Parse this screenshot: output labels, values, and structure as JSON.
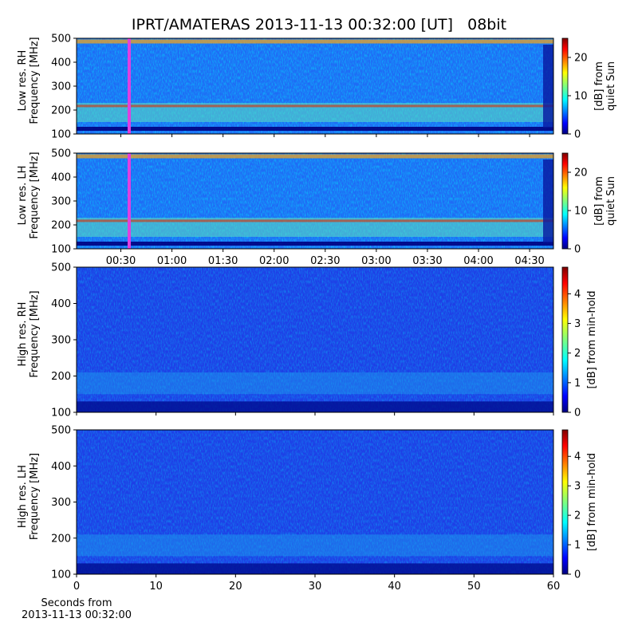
{
  "title": "IPRT/AMATERAS 2013-11-13 00:32:00 [UT]   08bit",
  "chart_data": [
    {
      "type": "heatmap",
      "ylabel": "Low res. RH\nFrequency [MHz]",
      "ylim": [
        100,
        500
      ],
      "yticks": [
        100,
        200,
        300,
        400,
        500
      ],
      "xlim": [
        4,
        284
      ],
      "xticks": [
        {
          "value": 30,
          "label": "00:30"
        },
        {
          "value": 60,
          "label": "01:00"
        },
        {
          "value": 90,
          "label": "01:30"
        },
        {
          "value": 120,
          "label": "02:00"
        },
        {
          "value": 150,
          "label": "02:30"
        },
        {
          "value": 180,
          "label": "03:00"
        },
        {
          "value": 210,
          "label": "03:30"
        },
        {
          "value": 240,
          "label": "04:00"
        },
        {
          "value": 270,
          "label": "04:30"
        }
      ],
      "show_xtick_labels": false,
      "colorbar_label": "[dB] from\nquiet Sun",
      "clim": [
        0,
        25
      ],
      "cticks": [
        0,
        10,
        20
      ]
    },
    {
      "type": "heatmap",
      "ylabel": "Low res. LH\nFrequency [MHz]",
      "ylim": [
        100,
        500
      ],
      "yticks": [
        100,
        200,
        300,
        400,
        500
      ],
      "xlim": [
        4,
        284
      ],
      "xticks": [
        {
          "value": 30,
          "label": "00:30"
        },
        {
          "value": 60,
          "label": "01:00"
        },
        {
          "value": 90,
          "label": "01:30"
        },
        {
          "value": 120,
          "label": "02:00"
        },
        {
          "value": 150,
          "label": "02:30"
        },
        {
          "value": 180,
          "label": "03:00"
        },
        {
          "value": 210,
          "label": "03:30"
        },
        {
          "value": 240,
          "label": "04:00"
        },
        {
          "value": 270,
          "label": "04:30"
        }
      ],
      "show_xtick_labels": true,
      "colorbar_label": "[dB] from\nquiet Sun",
      "clim": [
        0,
        25
      ],
      "cticks": [
        0,
        10,
        20
      ]
    },
    {
      "type": "heatmap",
      "ylabel": "High res. RH\nFrequency [MHz]",
      "ylim": [
        100,
        500
      ],
      "yticks": [
        100,
        200,
        300,
        400,
        500
      ],
      "xlim": [
        0,
        60
      ],
      "xticks": [
        0,
        10,
        20,
        30,
        40,
        50,
        60
      ],
      "show_xtick_labels": false,
      "colorbar_label": "[dB] from min-hold",
      "clim": [
        0,
        4.9
      ],
      "cticks": [
        0,
        1,
        2,
        3,
        4
      ]
    },
    {
      "type": "heatmap",
      "ylabel": "High res. LH\nFrequency [MHz]",
      "ylim": [
        100,
        500
      ],
      "yticks": [
        100,
        200,
        300,
        400,
        500
      ],
      "xlim": [
        0,
        60
      ],
      "xticks": [
        0,
        10,
        20,
        30,
        40,
        50,
        60
      ],
      "show_xtick_labels": true,
      "xlabel": "Seconds from\n2013-11-13 00:32:00",
      "colorbar_label": "[dB] from min-hold",
      "clim": [
        0,
        4.9
      ],
      "cticks": [
        0,
        1,
        2,
        3,
        4
      ]
    }
  ]
}
